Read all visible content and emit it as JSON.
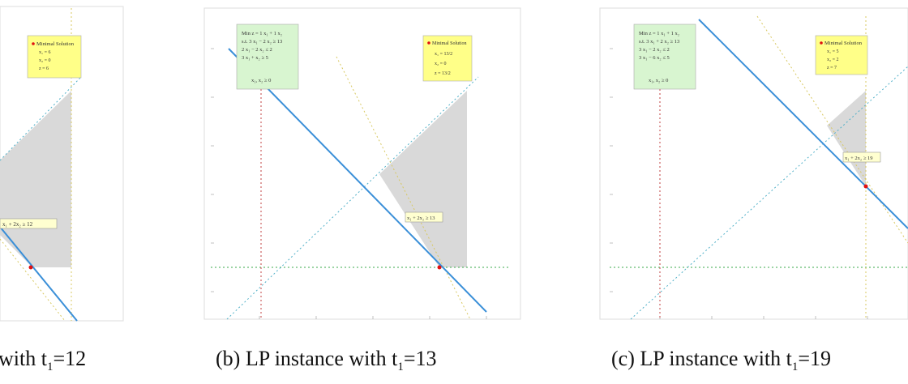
{
  "figures": [
    {
      "id": "a",
      "caption_prefix": "",
      "caption_label": "",
      "caption_body": "with t",
      "caption_sub": "1",
      "caption_value": "=12",
      "formula_box": null,
      "legend": {
        "title": "Minimal Solution",
        "lines": [
          "x₁ = 6",
          "x₂ = 0",
          "z = 6"
        ]
      },
      "line_label": "x₁ + 2x₂ ≥ 12"
    },
    {
      "id": "b",
      "caption_label": "(b) LP instance with t",
      "caption_sub": "1",
      "caption_value": "=13",
      "formula_box": {
        "lines": [
          "Min z = 1 x₁ + 1 x₂",
          "s.t.  3 x₁ − 2 x₂ ≥ 13",
          "  2 x₁ − 2 x₂ ≤ 2",
          "  3 x₁ + x₂ ≥ 5",
          "",
          "x₁, x₂ ≥ 0"
        ]
      },
      "legend": {
        "title": "Minimal Solution",
        "lines": [
          "x₁ = 13/2",
          "x₂ = 0",
          "z = 13/2"
        ]
      },
      "line_label": "x₁ + 2x₂ ≥ 13"
    },
    {
      "id": "c",
      "caption_label": "(c) LP instance with t",
      "caption_sub": "1",
      "caption_value": "=19",
      "formula_box": {
        "lines": [
          "Min z = 1 x₁ + 1 x₂",
          "s.t.  3 x₁ + 2 x₂ ≥ 13",
          "  3 x₁ − 2 x₂ ≤ 2",
          "  3 x₁ − 6 x₂ ≤ 5",
          "",
          "x₁, x₂ ≥ 0"
        ]
      },
      "legend": {
        "title": "Minimal Solution",
        "lines": [
          "x₁ = 5",
          "x₂ = 2",
          "z = 7"
        ]
      },
      "line_label": "x₁ + 2x₂ ≥ 19"
    }
  ],
  "colors": {
    "feasible": "#d9d9d9",
    "objective": "#3a8fd8",
    "legend_bg": "#ffff88",
    "formula_bg": "#d8f5d0",
    "solution_point": "#e01010",
    "dotted_green": "#3aa84a",
    "dotted_red": "#c04040",
    "dotted_yellow": "#d8c860",
    "dotted_cyan": "#50b0c8"
  }
}
